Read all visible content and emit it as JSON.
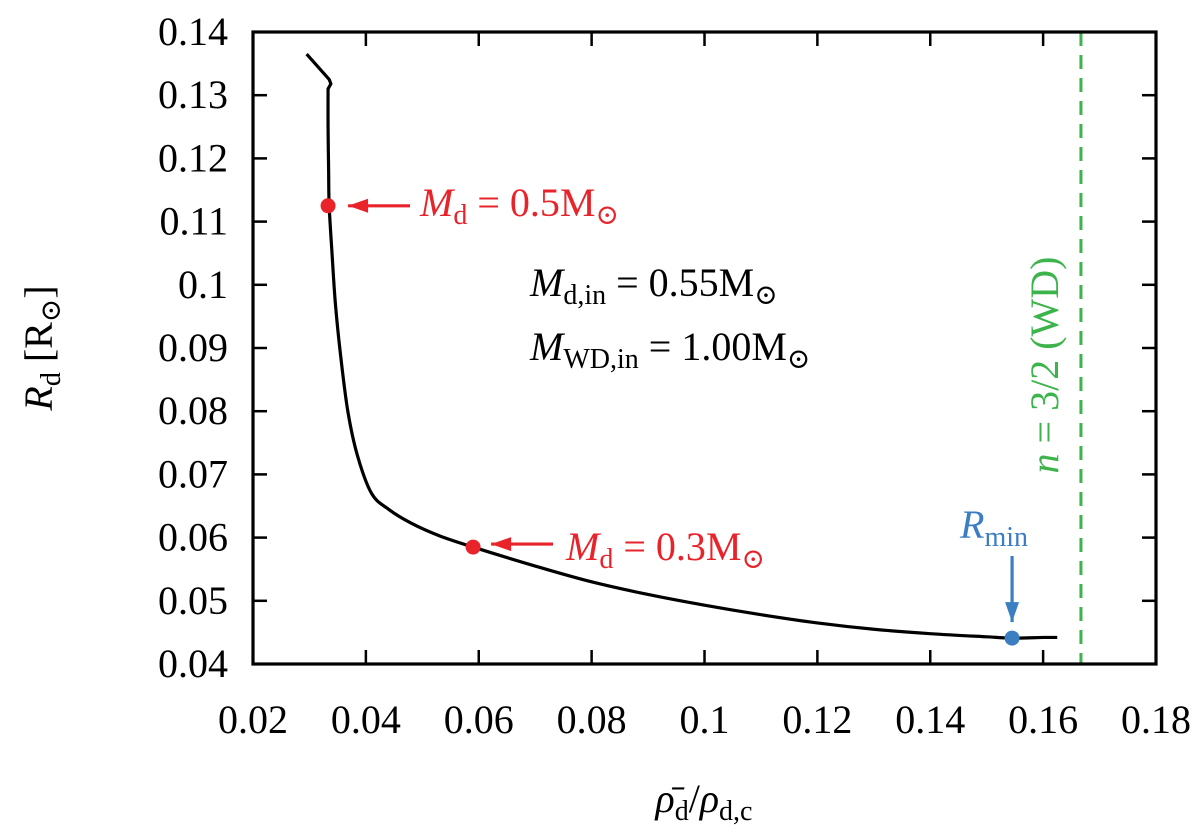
{
  "chart_data": {
    "type": "line",
    "xlim": [
      0.02,
      0.18
    ],
    "ylim": [
      0.04,
      0.14
    ],
    "x_ticks": [
      "0.02",
      "0.04",
      "0.06",
      "0.08",
      "0.1",
      "0.12",
      "0.14",
      "0.16",
      "0.18"
    ],
    "x_tick_values": [
      0.02,
      0.04,
      0.06,
      0.08,
      0.1,
      0.12,
      0.14,
      0.16,
      0.18
    ],
    "y_ticks": [
      "0.04",
      "0.05",
      "0.06",
      "0.07",
      "0.08",
      "0.09",
      "0.1",
      "0.11",
      "0.12",
      "0.13",
      "0.14"
    ],
    "y_tick_values": [
      0.04,
      0.05,
      0.06,
      0.07,
      0.08,
      0.09,
      0.1,
      0.11,
      0.12,
      0.13,
      0.14
    ],
    "xlabel": {
      "rho_bar": "ρ̄",
      "sub_d": "d",
      "slash": "/",
      "rho": "ρ",
      "sub_dc": "d,c"
    },
    "ylabel": {
      "R": "R",
      "sub": "d",
      "unit": "[R",
      "sun": "⊙",
      "close": "]"
    },
    "series": [
      {
        "name": "R_d track",
        "color": "#000000",
        "points": [
          [
            0.0295,
            0.1365
          ],
          [
            0.0335,
            0.1325
          ],
          [
            0.0338,
            0.1318
          ],
          [
            0.0333,
            0.131
          ],
          [
            0.0333,
            0.125
          ],
          [
            0.0334,
            0.118
          ],
          [
            0.0335,
            0.1125
          ],
          [
            0.034,
            0.105
          ],
          [
            0.0346,
            0.097
          ],
          [
            0.0355,
            0.089
          ],
          [
            0.0368,
            0.08
          ],
          [
            0.0385,
            0.073
          ],
          [
            0.041,
            0.067
          ],
          [
            0.044,
            0.0645
          ],
          [
            0.048,
            0.0623
          ],
          [
            0.053,
            0.0603
          ],
          [
            0.059,
            0.0585
          ],
          [
            0.07,
            0.0555
          ],
          [
            0.08,
            0.053
          ],
          [
            0.09,
            0.051
          ],
          [
            0.1,
            0.0493
          ],
          [
            0.11,
            0.0478
          ],
          [
            0.12,
            0.0465
          ],
          [
            0.13,
            0.0455
          ],
          [
            0.14,
            0.0448
          ],
          [
            0.15,
            0.0443
          ],
          [
            0.1545,
            0.0441
          ],
          [
            0.16,
            0.0442
          ],
          [
            0.1625,
            0.0442
          ]
        ]
      }
    ],
    "markers": [
      {
        "name": "Md-0.5",
        "x": 0.0333,
        "y": 0.1125,
        "color": "#e8232a"
      },
      {
        "name": "Md-0.3",
        "x": 0.059,
        "y": 0.0585,
        "color": "#e8232a"
      },
      {
        "name": "Rmin",
        "x": 0.1545,
        "y": 0.0441,
        "color": "#3b7ec2"
      }
    ],
    "vline": {
      "x": 0.1667,
      "color": "#3cb44b",
      "style": "dashed"
    },
    "annotations": {
      "md05": {
        "M": "M",
        "sub": "d",
        "eq": " = 0.5M",
        "sun": "⊙",
        "color": "#e8232a"
      },
      "md03": {
        "M": "M",
        "sub": "d",
        "eq": " = 0.3M",
        "sun": "⊙",
        "color": "#e8232a"
      },
      "rmin": {
        "R": "R",
        "sub": "min",
        "color": "#3b7ec2"
      },
      "mdin": {
        "M": "M",
        "sub": "d,in",
        "eq": " = 0.55M",
        "sun": "⊙",
        "color": "#000000"
      },
      "mwdin": {
        "M": "M",
        "sub": "WD,in",
        "eq": " = 1.00M",
        "sun": "⊙",
        "color": "#000000"
      },
      "wdline": {
        "n": "n",
        "eq": " = 3/2 (WD)",
        "color": "#3cb44b"
      }
    }
  }
}
